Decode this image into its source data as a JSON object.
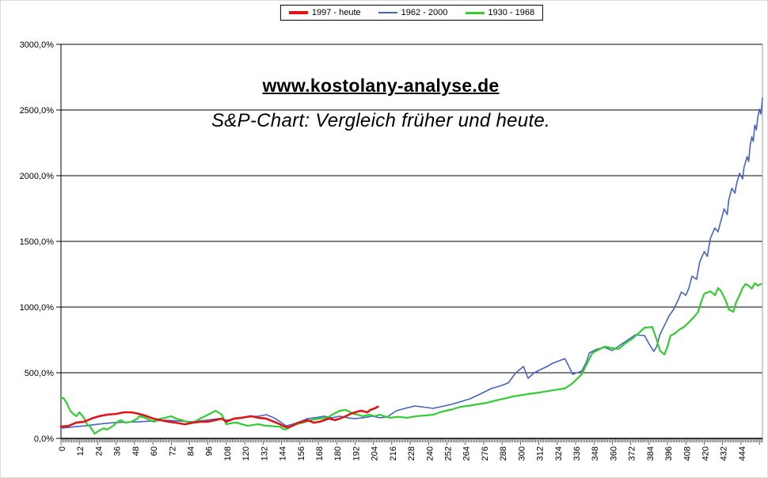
{
  "title": {
    "line1": "www.kostolany-analyse.de",
    "line2": "S&P-Chart: Vergleich früher und heute."
  },
  "legend": {
    "items": [
      {
        "label": "1997 - heute",
        "color": "#e01414",
        "swatch_height": 4
      },
      {
        "label": "1962 - 2000",
        "color": "#4664be",
        "swatch_height": 2
      },
      {
        "label": "1930 - 1968",
        "color": "#33cc33",
        "swatch_height": 3
      }
    ]
  },
  "chart_data": {
    "type": "line",
    "title": "www.kostolany-analyse.de",
    "subtitle": "S&P-Chart: Vergleich früher und heute.",
    "xlabel": "",
    "ylabel": "",
    "xlim": [
      0,
      458
    ],
    "ylim": [
      0,
      3000
    ],
    "grid": "horizontal-black",
    "legend_position": "top-center",
    "x_label_step": 12,
    "x_ticks": [
      0,
      12,
      24,
      36,
      48,
      60,
      72,
      84,
      96,
      108,
      120,
      132,
      144,
      156,
      168,
      180,
      192,
      204,
      216,
      228,
      240,
      252,
      264,
      276,
      288,
      300,
      312,
      324,
      336,
      348,
      360,
      372,
      384,
      396,
      408,
      420,
      432,
      444
    ],
    "y_ticks": [
      {
        "value": 0,
        "label": "0,0%"
      },
      {
        "value": 500,
        "label": "500,0%"
      },
      {
        "value": 1000,
        "label": "1000,0%"
      },
      {
        "value": 1500,
        "label": "1500,0%"
      },
      {
        "value": 2000,
        "label": "2000,0%"
      },
      {
        "value": 2500,
        "label": "2500,0%"
      },
      {
        "value": 3000,
        "label": "3000,0%"
      }
    ],
    "series": [
      {
        "id": "1962-2000",
        "name": "1962 - 2000",
        "color": "#4664be",
        "width": 1.6,
        "points": [
          [
            0,
            78
          ],
          [
            8,
            88
          ],
          [
            16,
            96
          ],
          [
            24,
            108
          ],
          [
            34,
            120
          ],
          [
            42,
            124
          ],
          [
            51,
            127
          ],
          [
            60,
            133
          ],
          [
            68,
            139
          ],
          [
            77,
            133
          ],
          [
            86,
            127
          ],
          [
            95,
            139
          ],
          [
            103,
            151
          ],
          [
            108,
            139
          ],
          [
            113,
            148
          ],
          [
            118,
            157
          ],
          [
            124,
            166
          ],
          [
            129,
            169
          ],
          [
            134,
            181
          ],
          [
            139,
            157
          ],
          [
            144,
            120
          ],
          [
            147,
            96
          ],
          [
            151,
            108
          ],
          [
            156,
            127
          ],
          [
            161,
            151
          ],
          [
            166,
            157
          ],
          [
            172,
            169
          ],
          [
            177,
            157
          ],
          [
            182,
            169
          ],
          [
            187,
            157
          ],
          [
            192,
            151
          ],
          [
            197,
            157
          ],
          [
            203,
            169
          ],
          [
            208,
            157
          ],
          [
            213,
            163
          ],
          [
            219,
            211
          ],
          [
            225,
            230
          ],
          [
            231,
            247
          ],
          [
            237,
            238
          ],
          [
            243,
            229
          ],
          [
            249,
            244
          ],
          [
            255,
            259
          ],
          [
            261,
            280
          ],
          [
            267,
            301
          ],
          [
            274,
            340
          ],
          [
            281,
            380
          ],
          [
            287,
            400
          ],
          [
            292,
            422
          ],
          [
            297,
            500
          ],
          [
            302,
            548
          ],
          [
            305,
            458
          ],
          [
            309,
            500
          ],
          [
            312,
            518
          ],
          [
            317,
            545
          ],
          [
            321,
            572
          ],
          [
            325,
            590
          ],
          [
            329,
            608
          ],
          [
            332,
            540
          ],
          [
            334,
            488
          ],
          [
            337,
            500
          ],
          [
            340,
            512
          ],
          [
            343,
            580
          ],
          [
            345,
            651
          ],
          [
            350,
            680
          ],
          [
            355,
            693
          ],
          [
            360,
            669
          ],
          [
            365,
            710
          ],
          [
            369,
            741
          ],
          [
            372,
            765
          ],
          [
            375,
            789
          ],
          [
            378,
            786
          ],
          [
            381,
            783
          ],
          [
            384,
            720
          ],
          [
            387,
            663
          ],
          [
            389,
            700
          ],
          [
            391,
            789
          ],
          [
            394,
            860
          ],
          [
            397,
            933
          ],
          [
            400,
            982
          ],
          [
            403,
            1054
          ],
          [
            405,
            1114
          ],
          [
            408,
            1090
          ],
          [
            410,
            1145
          ],
          [
            412,
            1235
          ],
          [
            415,
            1211
          ],
          [
            417,
            1343
          ],
          [
            420,
            1422
          ],
          [
            422,
            1386
          ],
          [
            424,
            1524
          ],
          [
            427,
            1602
          ],
          [
            429,
            1572
          ],
          [
            431,
            1663
          ],
          [
            433,
            1747
          ],
          [
            435,
            1705
          ],
          [
            436,
            1813
          ],
          [
            438,
            1904
          ],
          [
            440,
            1867
          ],
          [
            441,
            1934
          ],
          [
            443,
            2018
          ],
          [
            445,
            1976
          ],
          [
            446,
            2066
          ],
          [
            448,
            2145
          ],
          [
            449,
            2108
          ],
          [
            450,
            2235
          ],
          [
            451,
            2295
          ],
          [
            452,
            2260
          ],
          [
            453,
            2386
          ],
          [
            454,
            2349
          ],
          [
            455,
            2446
          ],
          [
            456,
            2506
          ],
          [
            457,
            2470
          ],
          [
            458,
            2590
          ]
        ]
      },
      {
        "id": "1930-1968",
        "name": "1930 - 1968",
        "color": "#33cc33",
        "width": 2.2,
        "points": [
          [
            0,
            315
          ],
          [
            2,
            301
          ],
          [
            4,
            265
          ],
          [
            6,
            211
          ],
          [
            8,
            187
          ],
          [
            10,
            169
          ],
          [
            12,
            199
          ],
          [
            15,
            157
          ],
          [
            17,
            108
          ],
          [
            19,
            90
          ],
          [
            22,
            36
          ],
          [
            25,
            60
          ],
          [
            28,
            78
          ],
          [
            30,
            66
          ],
          [
            34,
            96
          ],
          [
            37,
            127
          ],
          [
            39,
            139
          ],
          [
            42,
            120
          ],
          [
            46,
            127
          ],
          [
            50,
            151
          ],
          [
            51,
            169
          ],
          [
            55,
            157
          ],
          [
            58,
            139
          ],
          [
            61,
            127
          ],
          [
            65,
            151
          ],
          [
            68,
            157
          ],
          [
            72,
            169
          ],
          [
            75,
            151
          ],
          [
            79,
            139
          ],
          [
            82,
            127
          ],
          [
            86,
            120
          ],
          [
            89,
            139
          ],
          [
            92,
            157
          ],
          [
            96,
            181
          ],
          [
            99,
            199
          ],
          [
            101,
            211
          ],
          [
            105,
            181
          ],
          [
            108,
            108
          ],
          [
            112,
            118
          ],
          [
            115,
            120
          ],
          [
            118,
            108
          ],
          [
            122,
            96
          ],
          [
            126,
            104
          ],
          [
            129,
            108
          ],
          [
            132,
            100
          ],
          [
            135,
            96
          ],
          [
            139,
            92
          ],
          [
            143,
            90
          ],
          [
            146,
            66
          ],
          [
            148,
            75
          ],
          [
            151,
            96
          ],
          [
            155,
            112
          ],
          [
            158,
            120
          ],
          [
            163,
            139
          ],
          [
            169,
            151
          ],
          [
            174,
            157
          ],
          [
            177,
            181
          ],
          [
            182,
            211
          ],
          [
            186,
            217
          ],
          [
            191,
            187
          ],
          [
            194,
            181
          ],
          [
            197,
            169
          ],
          [
            201,
            181
          ],
          [
            205,
            169
          ],
          [
            208,
            181
          ],
          [
            211,
            169
          ],
          [
            215,
            157
          ],
          [
            220,
            165
          ],
          [
            226,
            157
          ],
          [
            232,
            170
          ],
          [
            238,
            175
          ],
          [
            243,
            181
          ],
          [
            249,
            205
          ],
          [
            255,
            220
          ],
          [
            261,
            241
          ],
          [
            267,
            250
          ],
          [
            272,
            260
          ],
          [
            278,
            271
          ],
          [
            284,
            290
          ],
          [
            290,
            305
          ],
          [
            295,
            319
          ],
          [
            301,
            330
          ],
          [
            306,
            340
          ],
          [
            312,
            349
          ],
          [
            318,
            360
          ],
          [
            323,
            370
          ],
          [
            329,
            380
          ],
          [
            334,
            420
          ],
          [
            340,
            488
          ],
          [
            343,
            560
          ],
          [
            347,
            651
          ],
          [
            351,
            675
          ],
          [
            355,
            699
          ],
          [
            359,
            690
          ],
          [
            364,
            681
          ],
          [
            368,
            720
          ],
          [
            373,
            759
          ],
          [
            377,
            800
          ],
          [
            381,
            843
          ],
          [
            386,
            849
          ],
          [
            389,
            750
          ],
          [
            391,
            669
          ],
          [
            394,
            639
          ],
          [
            396,
            700
          ],
          [
            398,
            783
          ],
          [
            401,
            800
          ],
          [
            404,
            831
          ],
          [
            407,
            850
          ],
          [
            409,
            873
          ],
          [
            413,
            920
          ],
          [
            416,
            964
          ],
          [
            418,
            1040
          ],
          [
            420,
            1102
          ],
          [
            424,
            1120
          ],
          [
            427,
            1090
          ],
          [
            429,
            1145
          ],
          [
            431,
            1120
          ],
          [
            434,
            1050
          ],
          [
            436,
            982
          ],
          [
            439,
            964
          ],
          [
            441,
            1042
          ],
          [
            443,
            1090
          ],
          [
            445,
            1145
          ],
          [
            447,
            1175
          ],
          [
            449,
            1163
          ],
          [
            451,
            1140
          ],
          [
            453,
            1181
          ],
          [
            455,
            1163
          ],
          [
            457,
            1175
          ]
        ]
      },
      {
        "id": "1997-heute",
        "name": "1997 - heute",
        "color": "#e01414",
        "width": 2.6,
        "points": [
          [
            0,
            90
          ],
          [
            5,
            96
          ],
          [
            10,
            120
          ],
          [
            15,
            127
          ],
          [
            20,
            151
          ],
          [
            25,
            169
          ],
          [
            30,
            181
          ],
          [
            36,
            187
          ],
          [
            41,
            199
          ],
          [
            46,
            199
          ],
          [
            51,
            187
          ],
          [
            56,
            169
          ],
          [
            60,
            151
          ],
          [
            65,
            139
          ],
          [
            70,
            127
          ],
          [
            75,
            120
          ],
          [
            81,
            108
          ],
          [
            86,
            120
          ],
          [
            91,
            127
          ],
          [
            96,
            127
          ],
          [
            101,
            139
          ],
          [
            105,
            151
          ],
          [
            108,
            127
          ],
          [
            113,
            151
          ],
          [
            118,
            157
          ],
          [
            124,
            169
          ],
          [
            129,
            157
          ],
          [
            134,
            151
          ],
          [
            139,
            127
          ],
          [
            143,
            108
          ],
          [
            146,
            90
          ],
          [
            148,
            84
          ],
          [
            151,
            96
          ],
          [
            155,
            120
          ],
          [
            158,
            127
          ],
          [
            161,
            139
          ],
          [
            165,
            120
          ],
          [
            169,
            127
          ],
          [
            172,
            139
          ],
          [
            175,
            151
          ],
          [
            179,
            139
          ],
          [
            182,
            151
          ],
          [
            186,
            169
          ],
          [
            189,
            187
          ],
          [
            192,
            199
          ],
          [
            196,
            211
          ],
          [
            200,
            199
          ],
          [
            202,
            217
          ],
          [
            205,
            230
          ],
          [
            207,
            242
          ]
        ]
      }
    ]
  }
}
